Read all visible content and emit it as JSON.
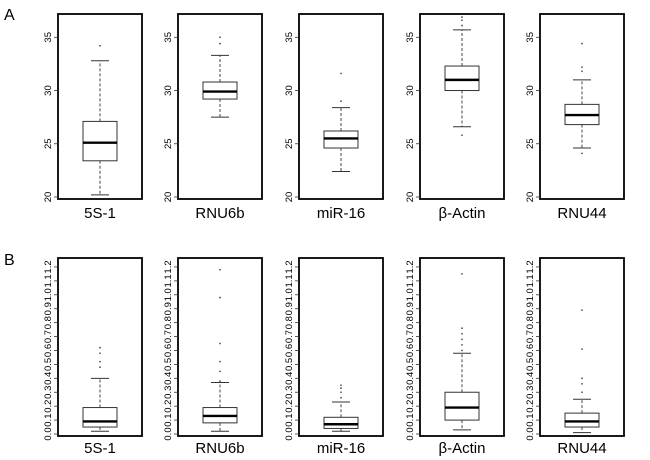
{
  "figure": {
    "panel_labels": [
      "A",
      "B"
    ]
  },
  "chart_data": [
    {
      "type": "boxplot",
      "panel": "A",
      "ylim": [
        20,
        37
      ],
      "yticks": [
        "20",
        "25",
        "30",
        "35"
      ],
      "grid": false,
      "series": [
        {
          "name": "5S-1",
          "whisker_low": 20.2,
          "q1": 23.4,
          "median": 25.1,
          "q3": 27.1,
          "whisker_high": 32.8,
          "outliers": [
            34.2
          ]
        },
        {
          "name": "RNU6b",
          "whisker_low": 27.5,
          "q1": 29.2,
          "median": 29.9,
          "q3": 30.8,
          "whisker_high": 33.3,
          "outliers": [
            35.0,
            34.4
          ]
        },
        {
          "name": "miR-16",
          "whisker_low": 22.4,
          "q1": 24.6,
          "median": 25.5,
          "q3": 26.2,
          "whisker_high": 28.4,
          "outliers": [
            29.0,
            31.6
          ]
        },
        {
          "name": "β-Actin",
          "whisker_low": 26.6,
          "q1": 30.0,
          "median": 31.0,
          "q3": 32.3,
          "whisker_high": 35.7,
          "outliers": [
            36.1,
            36.6,
            36.9,
            25.8
          ]
        },
        {
          "name": "RNU44",
          "whisker_low": 24.6,
          "q1": 26.8,
          "median": 27.7,
          "q3": 28.7,
          "whisker_high": 31.0,
          "outliers": [
            31.8,
            32.2,
            34.4,
            24.1
          ]
        }
      ]
    },
    {
      "type": "boxplot",
      "panel": "B",
      "ylim": [
        0,
        1.25
      ],
      "yticks": [
        "0.0",
        "0.1",
        "0.2",
        "0.3",
        "0.4",
        "0.5",
        "0.6",
        "0.7",
        "0.8",
        "0.9",
        "1.0",
        "1.1",
        "1.2"
      ],
      "grid": false,
      "series": [
        {
          "name": "5S-1",
          "whisker_low": 0.02,
          "q1": 0.05,
          "median": 0.09,
          "q3": 0.19,
          "whisker_high": 0.4,
          "outliers": [
            0.48,
            0.52,
            0.58,
            0.62
          ]
        },
        {
          "name": "RNU6b",
          "whisker_low": 0.02,
          "q1": 0.08,
          "median": 0.13,
          "q3": 0.19,
          "whisker_high": 0.37,
          "outliers": [
            0.38,
            0.45,
            0.52,
            0.65,
            0.98,
            1.18
          ]
        },
        {
          "name": "miR-16",
          "whisker_low": 0.02,
          "q1": 0.04,
          "median": 0.07,
          "q3": 0.12,
          "whisker_high": 0.23,
          "outliers": [
            0.26,
            0.3,
            0.33,
            0.35
          ]
        },
        {
          "name": "β-Actin",
          "whisker_low": 0.03,
          "q1": 0.1,
          "median": 0.19,
          "q3": 0.3,
          "whisker_high": 0.58,
          "outliers": [
            0.6,
            0.64,
            0.68,
            0.72,
            0.76,
            1.15
          ]
        },
        {
          "name": "RNU44",
          "whisker_low": 0.01,
          "q1": 0.05,
          "median": 0.09,
          "q3": 0.15,
          "whisker_high": 0.25,
          "outliers": [
            0.3,
            0.36,
            0.4,
            0.61,
            0.89
          ]
        }
      ]
    }
  ]
}
